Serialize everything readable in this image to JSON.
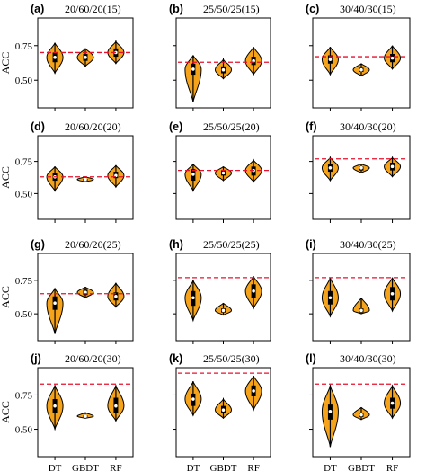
{
  "chart_data": {
    "type": "violin",
    "ylabel": "ACC",
    "xlabel": "",
    "categories": [
      "DT",
      "GBDT",
      "RF"
    ],
    "ylim": [
      0.3,
      0.95
    ],
    "yticks": [
      0.5,
      0.75
    ],
    "ytick_labels": [
      "0.50",
      "0.75"
    ],
    "colors": {
      "violin_fill": "#f5a31a",
      "edge": "#000000",
      "reference_line": "#e8112d",
      "median": "#ffffff"
    },
    "grid": false,
    "panels": [
      {
        "letter": "(a)",
        "title": "20/60/20(15)",
        "reference": 0.7,
        "series": [
          {
            "name": "DT",
            "min": 0.55,
            "q1": 0.63,
            "median": 0.665,
            "q3": 0.7,
            "max": 0.77
          },
          {
            "name": "GBDT",
            "min": 0.6,
            "q1": 0.64,
            "median": 0.665,
            "q3": 0.69,
            "max": 0.73
          },
          {
            "name": "RF",
            "min": 0.62,
            "q1": 0.67,
            "median": 0.7,
            "q3": 0.73,
            "max": 0.78
          }
        ]
      },
      {
        "letter": "(b)",
        "title": "25/50/25(15)",
        "reference": 0.63,
        "series": [
          {
            "name": "DT",
            "min": 0.34,
            "q1": 0.54,
            "median": 0.58,
            "q3": 0.62,
            "max": 0.68
          },
          {
            "name": "GBDT",
            "min": 0.51,
            "q1": 0.55,
            "median": 0.575,
            "q3": 0.6,
            "max": 0.65
          },
          {
            "name": "RF",
            "min": 0.54,
            "q1": 0.61,
            "median": 0.64,
            "q3": 0.67,
            "max": 0.74
          }
        ]
      },
      {
        "letter": "(c)",
        "title": "30/40/30(15)",
        "reference": 0.67,
        "series": [
          {
            "name": "DT",
            "min": 0.54,
            "q1": 0.62,
            "median": 0.65,
            "q3": 0.68,
            "max": 0.74
          },
          {
            "name": "GBDT",
            "min": 0.53,
            "q1": 0.56,
            "median": 0.575,
            "q3": 0.59,
            "max": 0.62
          },
          {
            "name": "RF",
            "min": 0.58,
            "q1": 0.63,
            "median": 0.66,
            "q3": 0.69,
            "max": 0.75
          }
        ]
      },
      {
        "letter": "(d)",
        "title": "20/60/20(20)",
        "reference": 0.63,
        "series": [
          {
            "name": "DT",
            "min": 0.52,
            "q1": 0.6,
            "median": 0.63,
            "q3": 0.66,
            "max": 0.71
          },
          {
            "name": "GBDT",
            "min": 0.59,
            "q1": 0.6,
            "median": 0.61,
            "q3": 0.615,
            "max": 0.63
          },
          {
            "name": "RF",
            "min": 0.55,
            "q1": 0.62,
            "median": 0.64,
            "q3": 0.67,
            "max": 0.72
          }
        ]
      },
      {
        "letter": "(e)",
        "title": "25/50/25(20)",
        "reference": 0.68,
        "series": [
          {
            "name": "DT",
            "min": 0.52,
            "q1": 0.6,
            "median": 0.65,
            "q3": 0.69,
            "max": 0.73
          },
          {
            "name": "GBDT",
            "min": 0.6,
            "q1": 0.64,
            "median": 0.66,
            "q3": 0.68,
            "max": 0.71
          },
          {
            "name": "RF",
            "min": 0.59,
            "q1": 0.64,
            "median": 0.68,
            "q3": 0.71,
            "max": 0.76
          }
        ]
      },
      {
        "letter": "(f)",
        "title": "30/40/30(20)",
        "reference": 0.77,
        "series": [
          {
            "name": "DT",
            "min": 0.6,
            "q1": 0.67,
            "median": 0.7,
            "q3": 0.73,
            "max": 0.78
          },
          {
            "name": "GBDT",
            "min": 0.66,
            "q1": 0.68,
            "median": 0.7,
            "q3": 0.71,
            "max": 0.73
          },
          {
            "name": "RF",
            "min": 0.63,
            "q1": 0.68,
            "median": 0.71,
            "q3": 0.74,
            "max": 0.78
          }
        ]
      },
      {
        "letter": "(g)",
        "title": "20/60/20(25)",
        "reference": 0.65,
        "series": [
          {
            "name": "DT",
            "min": 0.35,
            "q1": 0.53,
            "median": 0.58,
            "q3": 0.63,
            "max": 0.69
          },
          {
            "name": "GBDT",
            "min": 0.62,
            "q1": 0.64,
            "median": 0.66,
            "q3": 0.68,
            "max": 0.7
          },
          {
            "name": "RF",
            "min": 0.55,
            "q1": 0.6,
            "median": 0.63,
            "q3": 0.66,
            "max": 0.73
          }
        ]
      },
      {
        "letter": "(h)",
        "title": "25/50/25(25)",
        "reference": 0.77,
        "series": [
          {
            "name": "DT",
            "min": 0.45,
            "q1": 0.56,
            "median": 0.62,
            "q3": 0.67,
            "max": 0.75
          },
          {
            "name": "GBDT",
            "min": 0.49,
            "q1": 0.51,
            "median": 0.525,
            "q3": 0.54,
            "max": 0.58
          },
          {
            "name": "RF",
            "min": 0.54,
            "q1": 0.62,
            "median": 0.67,
            "q3": 0.72,
            "max": 0.78
          }
        ]
      },
      {
        "letter": "(i)",
        "title": "30/40/30(25)",
        "reference": 0.77,
        "series": [
          {
            "name": "DT",
            "min": 0.48,
            "q1": 0.57,
            "median": 0.62,
            "q3": 0.67,
            "max": 0.77
          },
          {
            "name": "GBDT",
            "min": 0.5,
            "q1": 0.51,
            "median": 0.525,
            "q3": 0.54,
            "max": 0.62
          },
          {
            "name": "RF",
            "min": 0.52,
            "q1": 0.6,
            "median": 0.65,
            "q3": 0.7,
            "max": 0.77
          }
        ]
      },
      {
        "letter": "(j)",
        "title": "20/60/20(30)",
        "reference": 0.83,
        "series": [
          {
            "name": "DT",
            "min": 0.5,
            "q1": 0.62,
            "median": 0.67,
            "q3": 0.72,
            "max": 0.82
          },
          {
            "name": "GBDT",
            "min": 0.58,
            "q1": 0.59,
            "median": 0.595,
            "q3": 0.6,
            "max": 0.62
          },
          {
            "name": "RF",
            "min": 0.56,
            "q1": 0.62,
            "median": 0.67,
            "q3": 0.73,
            "max": 0.82
          }
        ]
      },
      {
        "letter": "(k)",
        "title": "25/50/25(30)",
        "reference": 0.91,
        "series": [
          {
            "name": "DT",
            "min": 0.6,
            "q1": 0.67,
            "median": 0.72,
            "q3": 0.76,
            "max": 0.85
          },
          {
            "name": "GBDT",
            "min": 0.58,
            "q1": 0.62,
            "median": 0.64,
            "q3": 0.67,
            "max": 0.72
          },
          {
            "name": "RF",
            "min": 0.64,
            "q1": 0.74,
            "median": 0.78,
            "q3": 0.82,
            "max": 0.89
          }
        ]
      },
      {
        "letter": "(l)",
        "title": "30/40/30(30)",
        "reference": 0.83,
        "series": [
          {
            "name": "DT",
            "min": 0.37,
            "q1": 0.57,
            "median": 0.63,
            "q3": 0.68,
            "max": 0.82
          },
          {
            "name": "GBDT",
            "min": 0.57,
            "q1": 0.59,
            "median": 0.605,
            "q3": 0.62,
            "max": 0.66
          },
          {
            "name": "RF",
            "min": 0.58,
            "q1": 0.65,
            "median": 0.69,
            "q3": 0.73,
            "max": 0.82
          }
        ]
      }
    ]
  }
}
